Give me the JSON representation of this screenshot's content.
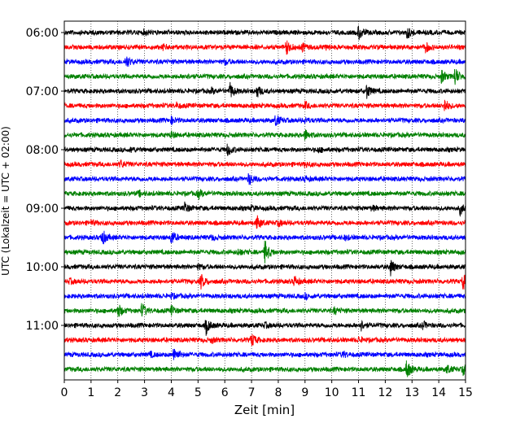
{
  "chart_data": {
    "type": "line",
    "xlabel": "Zeit  [min]",
    "ylabel": "UTC (Lokalzeit = UTC + 02:00)",
    "xlim": [
      0,
      15
    ],
    "x_ticks": [
      0,
      1,
      2,
      3,
      4,
      5,
      6,
      7,
      8,
      9,
      10,
      11,
      12,
      13,
      14,
      15
    ],
    "y_tick_labels": [
      "06:00",
      "07:00",
      "08:00",
      "09:00",
      "10:00",
      "11:00"
    ],
    "y_tick_trace_index": [
      0,
      4,
      8,
      12,
      16,
      20
    ],
    "grid_x": true,
    "trace_duration_min": 15,
    "trace_colors": [
      "#000000",
      "#ff0000",
      "#0000ff",
      "#008000"
    ],
    "traces": [
      {
        "start": "06:00",
        "color": "#000000",
        "events": [
          [
            11.0,
            1.0
          ],
          [
            12.8,
            0.9
          ],
          [
            3.0,
            0.3
          ]
        ]
      },
      {
        "start": "06:15",
        "color": "#ff0000",
        "events": [
          [
            8.3,
            1.0
          ],
          [
            8.9,
            0.5
          ],
          [
            13.5,
            0.7
          ],
          [
            3.7,
            0.3
          ],
          [
            9.8,
            0.3
          ]
        ]
      },
      {
        "start": "06:30",
        "color": "#0000ff",
        "events": [
          [
            2.3,
            0.9
          ],
          [
            6.0,
            0.3
          ]
        ]
      },
      {
        "start": "06:45",
        "color": "#008000",
        "events": [
          [
            14.1,
            0.9
          ],
          [
            14.6,
            1.3
          ],
          [
            4.5,
            0.3
          ]
        ]
      },
      {
        "start": "07:00",
        "color": "#000000",
        "events": [
          [
            6.2,
            1.0
          ],
          [
            7.2,
            0.8
          ],
          [
            11.3,
            1.0
          ],
          [
            5.5,
            0.3
          ]
        ]
      },
      {
        "start": "07:15",
        "color": "#ff0000",
        "events": [
          [
            14.2,
            1.0
          ],
          [
            9.0,
            0.4
          ],
          [
            4.2,
            0.3
          ]
        ]
      },
      {
        "start": "07:30",
        "color": "#0000ff",
        "events": [
          [
            7.9,
            0.8
          ],
          [
            4.0,
            0.4
          ],
          [
            9.0,
            0.3
          ]
        ]
      },
      {
        "start": "07:45",
        "color": "#008000",
        "events": [
          [
            9.0,
            0.7
          ],
          [
            4.0,
            0.4
          ]
        ]
      },
      {
        "start": "08:00",
        "color": "#000000",
        "events": [
          [
            6.1,
            0.8
          ],
          [
            2.5,
            0.3
          ],
          [
            9.5,
            0.3
          ]
        ]
      },
      {
        "start": "08:15",
        "color": "#ff0000",
        "events": [
          [
            2.1,
            0.5
          ],
          [
            9.0,
            0.3
          ]
        ]
      },
      {
        "start": "08:30",
        "color": "#0000ff",
        "events": [
          [
            6.9,
            0.8
          ],
          [
            9.0,
            0.3
          ]
        ]
      },
      {
        "start": "08:45",
        "color": "#008000",
        "events": [
          [
            5.0,
            0.6
          ],
          [
            2.8,
            0.3
          ]
        ]
      },
      {
        "start": "09:00",
        "color": "#000000",
        "events": [
          [
            4.5,
            0.7
          ],
          [
            14.8,
            0.8
          ],
          [
            7.0,
            0.3
          ],
          [
            11.5,
            0.3
          ]
        ]
      },
      {
        "start": "09:15",
        "color": "#ff0000",
        "events": [
          [
            7.2,
            1.0
          ],
          [
            1.0,
            0.3
          ],
          [
            8.0,
            0.4
          ]
        ]
      },
      {
        "start": "09:30",
        "color": "#0000ff",
        "events": [
          [
            1.4,
            1.2
          ],
          [
            4.0,
            1.0
          ],
          [
            5.5,
            0.3
          ],
          [
            10.5,
            0.3
          ]
        ]
      },
      {
        "start": "09:45",
        "color": "#008000",
        "events": [
          [
            7.5,
            1.6
          ],
          [
            6.5,
            0.4
          ]
        ]
      },
      {
        "start": "10:00",
        "color": "#000000",
        "events": [
          [
            12.2,
            1.1
          ],
          [
            5.0,
            0.3
          ]
        ]
      },
      {
        "start": "10:15",
        "color": "#ff0000",
        "events": [
          [
            5.1,
            1.0
          ],
          [
            8.6,
            0.7
          ],
          [
            14.9,
            1.1
          ],
          [
            0.2,
            0.3
          ]
        ]
      },
      {
        "start": "10:30",
        "color": "#0000ff",
        "events": [
          [
            9.0,
            0.3
          ],
          [
            4.0,
            0.3
          ]
        ]
      },
      {
        "start": "10:45",
        "color": "#008000",
        "events": [
          [
            2.0,
            1.0
          ],
          [
            2.9,
            1.0
          ],
          [
            4.0,
            0.6
          ],
          [
            10.1,
            0.4
          ]
        ]
      },
      {
        "start": "11:00",
        "color": "#000000",
        "events": [
          [
            5.3,
            1.1
          ],
          [
            11.1,
            0.6
          ],
          [
            13.4,
            0.5
          ],
          [
            7.5,
            0.3
          ]
        ]
      },
      {
        "start": "11:15",
        "color": "#ff0000",
        "events": [
          [
            7.0,
            0.9
          ],
          [
            5.5,
            0.3
          ],
          [
            11.0,
            0.3
          ]
        ]
      },
      {
        "start": "11:30",
        "color": "#0000ff",
        "events": [
          [
            4.1,
            1.1
          ],
          [
            3.2,
            0.3
          ],
          [
            10.4,
            0.4
          ]
        ]
      },
      {
        "start": "11:45",
        "color": "#008000",
        "events": [
          [
            12.8,
            1.3
          ],
          [
            14.3,
            0.6
          ],
          [
            14.9,
            0.7
          ]
        ]
      }
    ]
  }
}
